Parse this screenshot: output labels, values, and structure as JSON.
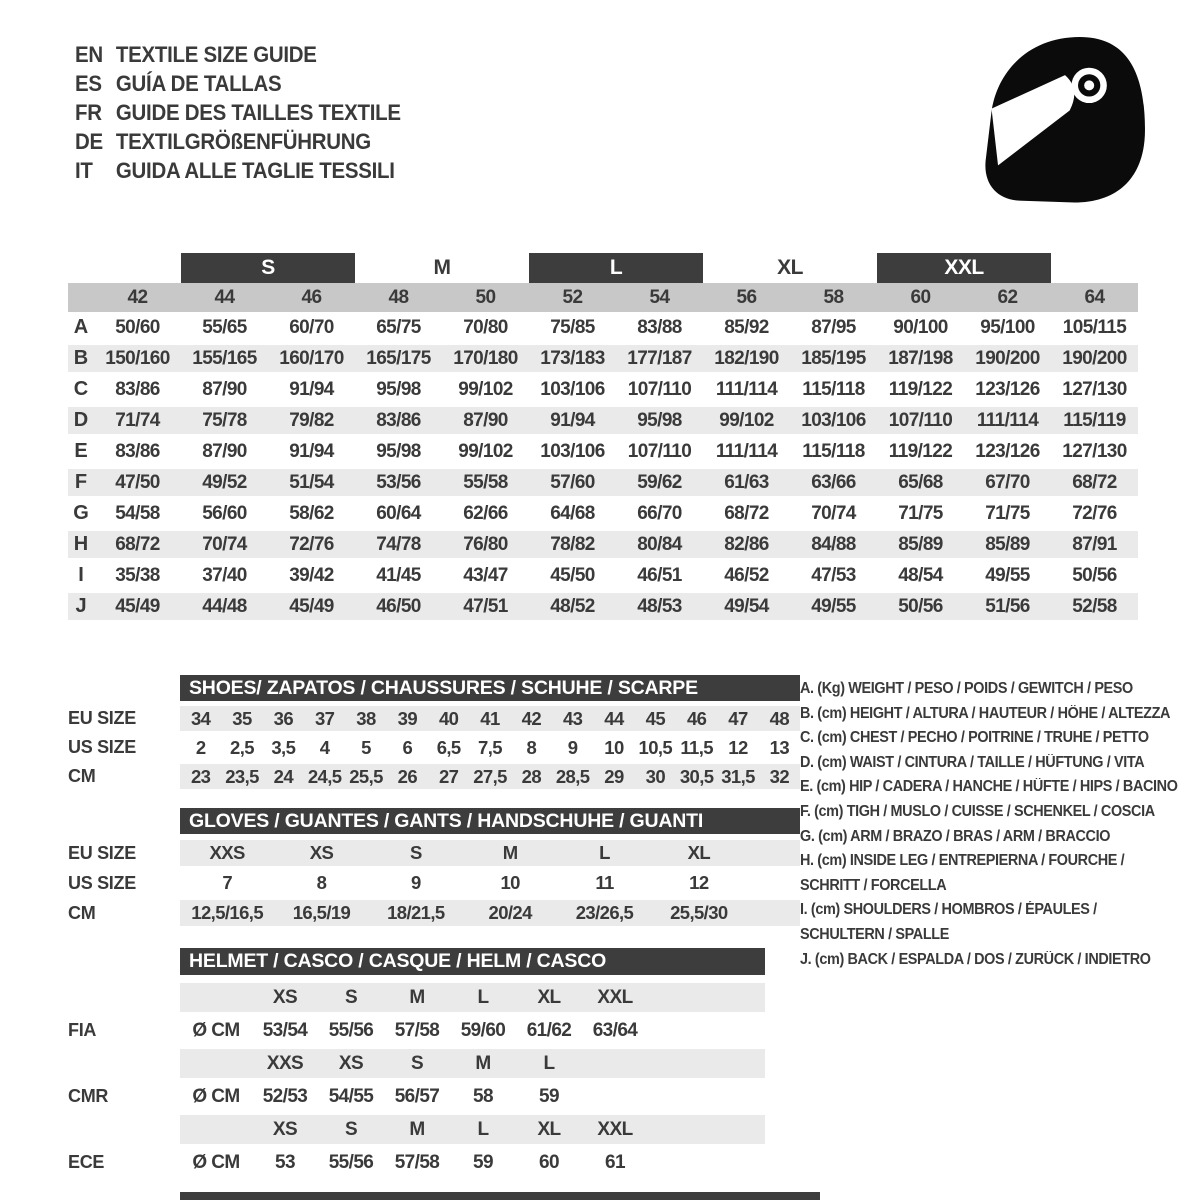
{
  "colors": {
    "bar_dark": "#3d3d3d",
    "band_gray": "#c8c8c8",
    "row_gray": "#eaeaea",
    "text_dark": "#3a3a3a",
    "helmet_black": "#0b0b0b"
  },
  "header": {
    "languages": [
      {
        "code": "EN",
        "label": "TEXTILE SIZE GUIDE"
      },
      {
        "code": "ES",
        "label": "GUÍA DE TALLAS"
      },
      {
        "code": "FR",
        "label": "GUIDE DES TAILLES TEXTILE"
      },
      {
        "code": "DE",
        "label": "TEXTILGRÖßENFÜHRUNG"
      },
      {
        "code": "IT",
        "label": "GUIDA ALLE TAGLIE TESSILI"
      }
    ],
    "logo_icon": "helmet-icon"
  },
  "size_table": {
    "bands": [
      {
        "label": "S",
        "bar": true,
        "columns": [
          "44",
          "46"
        ]
      },
      {
        "label": "M",
        "bar": false,
        "columns": [
          "48",
          "50"
        ]
      },
      {
        "label": "L",
        "bar": true,
        "columns": [
          "52",
          "54"
        ]
      },
      {
        "label": "XL",
        "bar": false,
        "columns": [
          "56",
          "58"
        ]
      },
      {
        "label": "XXL",
        "bar": true,
        "columns": [
          "60",
          "62"
        ]
      }
    ],
    "columns": [
      "42",
      "44",
      "46",
      "48",
      "50",
      "52",
      "54",
      "56",
      "58",
      "60",
      "62",
      "64"
    ],
    "rows": [
      {
        "id": "A",
        "values": [
          "50/60",
          "55/65",
          "60/70",
          "65/75",
          "70/80",
          "75/85",
          "83/88",
          "85/92",
          "87/95",
          "90/100",
          "95/100",
          "105/115"
        ]
      },
      {
        "id": "B",
        "values": [
          "150/160",
          "155/165",
          "160/170",
          "165/175",
          "170/180",
          "173/183",
          "177/187",
          "182/190",
          "185/195",
          "187/198",
          "190/200",
          "190/200"
        ]
      },
      {
        "id": "C",
        "values": [
          "83/86",
          "87/90",
          "91/94",
          "95/98",
          "99/102",
          "103/106",
          "107/110",
          "111/114",
          "115/118",
          "119/122",
          "123/126",
          "127/130"
        ]
      },
      {
        "id": "D",
        "values": [
          "71/74",
          "75/78",
          "79/82",
          "83/86",
          "87/90",
          "91/94",
          "95/98",
          "99/102",
          "103/106",
          "107/110",
          "111/114",
          "115/119"
        ]
      },
      {
        "id": "E",
        "values": [
          "83/86",
          "87/90",
          "91/94",
          "95/98",
          "99/102",
          "103/106",
          "107/110",
          "111/114",
          "115/118",
          "119/122",
          "123/126",
          "127/130"
        ]
      },
      {
        "id": "F",
        "values": [
          "47/50",
          "49/52",
          "51/54",
          "53/56",
          "55/58",
          "57/60",
          "59/62",
          "61/63",
          "63/66",
          "65/68",
          "67/70",
          "68/72"
        ]
      },
      {
        "id": "G",
        "values": [
          "54/58",
          "56/60",
          "58/62",
          "60/64",
          "62/66",
          "64/68",
          "66/70",
          "68/72",
          "70/74",
          "71/75",
          "71/75",
          "72/76"
        ]
      },
      {
        "id": "H",
        "values": [
          "68/72",
          "70/74",
          "72/76",
          "74/78",
          "76/80",
          "78/82",
          "80/84",
          "82/86",
          "84/88",
          "85/89",
          "85/89",
          "87/91"
        ]
      },
      {
        "id": "I",
        "values": [
          "35/38",
          "37/40",
          "39/42",
          "41/45",
          "43/47",
          "45/50",
          "46/51",
          "46/52",
          "47/53",
          "48/54",
          "49/55",
          "50/56"
        ]
      },
      {
        "id": "J",
        "values": [
          "45/49",
          "44/48",
          "45/49",
          "46/50",
          "47/51",
          "48/52",
          "48/53",
          "49/54",
          "49/55",
          "50/56",
          "51/56",
          "52/58"
        ]
      }
    ]
  },
  "shoes": {
    "title": "SHOES/ ZAPATOS / CHAUSSURES / SCHUHE / SCARPE",
    "rows": [
      {
        "label": "EU SIZE",
        "gray": true,
        "values": [
          "34",
          "35",
          "36",
          "37",
          "38",
          "39",
          "40",
          "41",
          "42",
          "43",
          "44",
          "45",
          "46",
          "47",
          "48"
        ]
      },
      {
        "label": "US SIZE",
        "gray": false,
        "values": [
          "2",
          "2,5",
          "3,5",
          "4",
          "5",
          "6",
          "6,5",
          "7,5",
          "8",
          "9",
          "10",
          "10,5",
          "11,5",
          "12",
          "13"
        ]
      },
      {
        "label": "CM",
        "gray": true,
        "values": [
          "23",
          "23,5",
          "24",
          "24,5",
          "25,5",
          "26",
          "27",
          "27,5",
          "28",
          "28,5",
          "29",
          "30",
          "30,5",
          "31,5",
          "32"
        ]
      }
    ]
  },
  "gloves": {
    "title": "GLOVES / GUANTES / GANTS / HANDSCHUHE / GUANTI",
    "rows": [
      {
        "label": "EU SIZE",
        "gray": true,
        "values": [
          "XXS",
          "XS",
          "S",
          "M",
          "L",
          "XL"
        ]
      },
      {
        "label": "US SIZE",
        "gray": false,
        "values": [
          "7",
          "8",
          "9",
          "10",
          "11",
          "12"
        ]
      },
      {
        "label": "CM",
        "gray": true,
        "values": [
          "12,5/16,5",
          "16,5/19",
          "18/21,5",
          "20/24",
          "23/26,5",
          "25,5/30"
        ]
      }
    ]
  },
  "helmet": {
    "title": "HELMET / CASCO / CASQUE / HELM / CASCO",
    "groups": [
      {
        "label": "FIA",
        "unit": "Ø CM",
        "sizes": [
          "XS",
          "S",
          "M",
          "L",
          "XL",
          "XXL"
        ],
        "values": [
          "53/54",
          "55/56",
          "57/58",
          "59/60",
          "61/62",
          "63/64"
        ]
      },
      {
        "label": "CMR",
        "unit": "Ø CM",
        "sizes": [
          "XXS",
          "XS",
          "S",
          "M",
          "L"
        ],
        "values": [
          "52/53",
          "54/55",
          "56/57",
          "58",
          "59"
        ]
      },
      {
        "label": "ECE",
        "unit": "Ø CM",
        "sizes": [
          "XS",
          "S",
          "M",
          "L",
          "XL",
          "XXL"
        ],
        "values": [
          "53",
          "55/56",
          "57/58",
          "59",
          "60",
          "61"
        ]
      }
    ]
  },
  "legend": [
    {
      "id": "A.",
      "unit": "(Kg)",
      "lines": [
        "WEIGHT / PESO / POIDS / GEWITCH / PESO"
      ]
    },
    {
      "id": "B.",
      "unit": "(cm)",
      "lines": [
        "HEIGHT / ALTURA / HAUTEUR / HÖHE / ALTEZZA"
      ]
    },
    {
      "id": "C.",
      "unit": "(cm)",
      "lines": [
        "CHEST / PECHO / POITRINE / TRUHE / PETTO"
      ]
    },
    {
      "id": "D.",
      "unit": "(cm)",
      "lines": [
        "WAIST / CINTURA / TAILLE / HÜFTUNG / VITA"
      ]
    },
    {
      "id": "E.",
      "unit": "(cm)",
      "lines": [
        "HIP / CADERA / HANCHE / HÜFTE / HIPS /  BACINO"
      ]
    },
    {
      "id": "F.",
      "unit": "(cm)",
      "lines": [
        "TIGH / MUSLO / CUISSE / SCHENKEL / COSCIA"
      ]
    },
    {
      "id": "G.",
      "unit": "(cm)",
      "lines": [
        "ARM  / BRAZO / BRAS / ARM / BRACCIO"
      ]
    },
    {
      "id": "H.",
      "unit": "(cm)",
      "lines": [
        "INSIDE LEG / ENTREPIERNA / FOURCHE /",
        "SCHRITT / FORCELLA"
      ]
    },
    {
      "id": "I.",
      "unit": "(cm)",
      "lines": [
        "SHOULDERS / HOMBROS / ÉPAULES /",
        "SCHULTERN / SPALLE"
      ]
    },
    {
      "id": "J.",
      "unit": "(cm)",
      "lines": [
        "BACK / ESPALDA / DOS / ZURÜCK / INDIETRO"
      ]
    }
  ]
}
